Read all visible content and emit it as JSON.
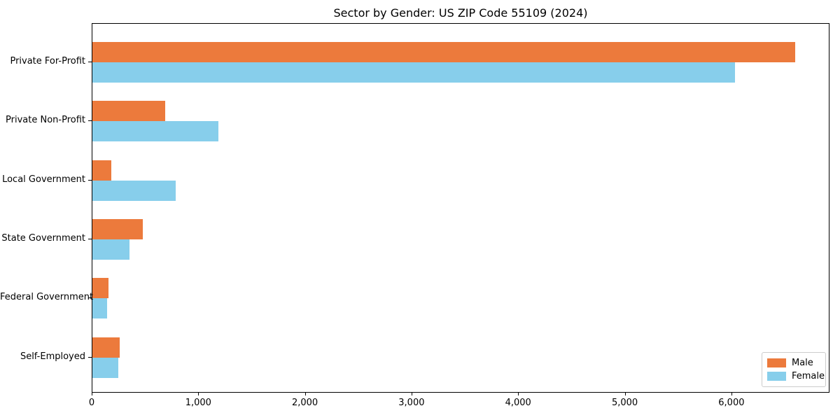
{
  "chart_data": {
    "type": "bar",
    "orientation": "horizontal",
    "title": "Sector by Gender: US ZIP Code 55109 (2024)",
    "categories": [
      "Private For-Profit",
      "Private Non-Profit",
      "Local Government",
      "State Government",
      "Federal Government",
      "Self-Employed"
    ],
    "series": [
      {
        "name": "Male",
        "color": "#ec7a3c",
        "values": [
          6590,
          680,
          180,
          470,
          150,
          255
        ]
      },
      {
        "name": "Female",
        "color": "#87ceeb",
        "values": [
          6030,
          1180,
          780,
          350,
          135,
          245
        ]
      }
    ],
    "xlabel": "",
    "ylabel": "",
    "xlim": [
      0,
      6920
    ],
    "xticks": [
      0,
      1000,
      2000,
      3000,
      4000,
      5000,
      6000
    ],
    "xtick_labels": [
      "0",
      "1,000",
      "2,000",
      "3,000",
      "4,000",
      "5,000",
      "6,000"
    ],
    "legend": {
      "position": "lower-right",
      "entries": [
        "Male",
        "Female"
      ]
    },
    "grid": false,
    "colors": {
      "male": "#ec7a3c",
      "female": "#87ceeb",
      "spine": "#000000",
      "legend_border": "#cccccc"
    }
  }
}
